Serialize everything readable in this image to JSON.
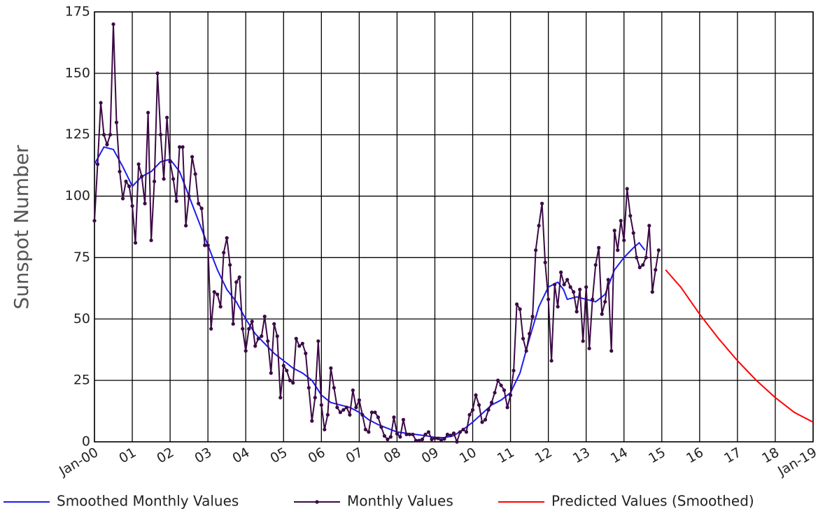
{
  "chart_data": {
    "type": "line",
    "y_label": "Sunspot Number",
    "xlim": [
      0,
      19
    ],
    "ylim": [
      0,
      175
    ],
    "xticks": [
      {
        "value": 0,
        "label": "Jan-00"
      },
      {
        "value": 1,
        "label": "01"
      },
      {
        "value": 2,
        "label": "02"
      },
      {
        "value": 3,
        "label": "03"
      },
      {
        "value": 4,
        "label": "04"
      },
      {
        "value": 5,
        "label": "05"
      },
      {
        "value": 6,
        "label": "06"
      },
      {
        "value": 7,
        "label": "07"
      },
      {
        "value": 8,
        "label": "08"
      },
      {
        "value": 9,
        "label": "09"
      },
      {
        "value": 10,
        "label": "10"
      },
      {
        "value": 11,
        "label": "11"
      },
      {
        "value": 12,
        "label": "12"
      },
      {
        "value": 13,
        "label": "13"
      },
      {
        "value": 14,
        "label": "14"
      },
      {
        "value": 15,
        "label": "15"
      },
      {
        "value": 16,
        "label": "16"
      },
      {
        "value": 17,
        "label": "17"
      },
      {
        "value": 18,
        "label": "18"
      },
      {
        "value": 19,
        "label": "Jan-19"
      }
    ],
    "yticks": [
      0,
      25,
      50,
      75,
      100,
      125,
      150,
      175
    ],
    "grid": true,
    "series": [
      {
        "name": "Smoothed Monthly Values",
        "color": "#1c1cf0",
        "x": [
          0,
          0.25,
          0.5,
          0.75,
          1,
          1.25,
          1.5,
          1.75,
          2,
          2.25,
          2.5,
          2.75,
          3,
          3.25,
          3.5,
          3.75,
          4,
          4.25,
          4.5,
          4.75,
          5,
          5.25,
          5.5,
          5.75,
          6,
          6.25,
          6.5,
          6.75,
          7,
          7.25,
          7.5,
          7.75,
          8,
          8.25,
          8.5,
          8.75,
          9,
          9.25,
          9.5,
          9.75,
          10,
          10.25,
          10.5,
          10.75,
          11,
          11.25,
          11.5,
          11.75,
          12,
          12.25,
          12.4,
          12.5,
          12.75,
          13,
          13.25,
          13.5,
          13.75,
          14,
          14.25,
          14.4,
          14.55
        ],
        "values": [
          113,
          120,
          119,
          112,
          104,
          108,
          110,
          114,
          115,
          110,
          100,
          90,
          80,
          70,
          62,
          57,
          50,
          44,
          40,
          36,
          33,
          30,
          28,
          25,
          19,
          16,
          15,
          14,
          12,
          9,
          7,
          5.5,
          4,
          3.5,
          3,
          2.5,
          1.8,
          1.7,
          2.5,
          5,
          8,
          11.5,
          15,
          17,
          20,
          28,
          42,
          55,
          63,
          65,
          62,
          58,
          59,
          58,
          57,
          60,
          70,
          75,
          79,
          81,
          78
        ]
      },
      {
        "name": "Monthly Values",
        "color": "#3b0a45",
        "marker": true,
        "x": [
          0,
          0.083,
          0.167,
          0.25,
          0.333,
          0.417,
          0.5,
          0.583,
          0.667,
          0.75,
          0.833,
          0.917,
          1,
          1.083,
          1.167,
          1.25,
          1.333,
          1.417,
          1.5,
          1.583,
          1.667,
          1.75,
          1.833,
          1.917,
          2,
          2.083,
          2.167,
          2.25,
          2.333,
          2.417,
          2.5,
          2.583,
          2.667,
          2.75,
          2.833,
          2.917,
          3,
          3.083,
          3.167,
          3.25,
          3.333,
          3.417,
          3.5,
          3.583,
          3.667,
          3.75,
          3.833,
          3.917,
          4,
          4.083,
          4.167,
          4.25,
          4.333,
          4.417,
          4.5,
          4.583,
          4.667,
          4.75,
          4.833,
          4.917,
          5,
          5.083,
          5.167,
          5.25,
          5.333,
          5.417,
          5.5,
          5.583,
          5.667,
          5.75,
          5.833,
          5.917,
          6,
          6.083,
          6.167,
          6.25,
          6.333,
          6.417,
          6.5,
          6.583,
          6.667,
          6.75,
          6.833,
          6.917,
          7,
          7.083,
          7.167,
          7.25,
          7.333,
          7.417,
          7.5,
          7.583,
          7.667,
          7.75,
          7.833,
          7.917,
          8,
          8.083,
          8.167,
          8.25,
          8.333,
          8.417,
          8.5,
          8.583,
          8.667,
          8.75,
          8.833,
          8.917,
          9,
          9.083,
          9.167,
          9.25,
          9.333,
          9.417,
          9.5,
          9.583,
          9.667,
          9.75,
          9.833,
          9.917,
          10,
          10.083,
          10.167,
          10.25,
          10.333,
          10.417,
          10.5,
          10.583,
          10.667,
          10.75,
          10.833,
          10.917,
          11,
          11.083,
          11.167,
          11.25,
          11.333,
          11.417,
          11.5,
          11.583,
          11.667,
          11.75,
          11.833,
          11.917,
          12,
          12.083,
          12.167,
          12.25,
          12.333,
          12.417,
          12.5,
          12.583,
          12.667,
          12.75,
          12.833,
          12.917,
          13,
          13.083,
          13.167,
          13.25,
          13.333,
          13.417,
          13.5,
          13.583,
          13.667,
          13.75,
          13.833,
          13.917,
          14,
          14.083,
          14.167,
          14.25,
          14.333,
          14.417,
          14.5,
          14.583,
          14.667,
          14.75,
          14.833,
          14.917
        ],
        "values": [
          90,
          113,
          138,
          125,
          121,
          125,
          170,
          130,
          110,
          99,
          106,
          104,
          96,
          81,
          113,
          108,
          97,
          134,
          82,
          106,
          150,
          125,
          107,
          132,
          114,
          107,
          98,
          120,
          120,
          88,
          100,
          116,
          109,
          97,
          95,
          80,
          80,
          46,
          61,
          60,
          55,
          77,
          83,
          72,
          48,
          65,
          67,
          46,
          37,
          46,
          49,
          39,
          42,
          43,
          51,
          41,
          28,
          48,
          43,
          18,
          31,
          29,
          25,
          24,
          42,
          39,
          40,
          36,
          22,
          8.5,
          18,
          41,
          15,
          5,
          11,
          30,
          22,
          14,
          12,
          13,
          14,
          11,
          21,
          14,
          17,
          11,
          5,
          4,
          12,
          12,
          10,
          6,
          2.4,
          1,
          2,
          10,
          3.3,
          2,
          9,
          3,
          3,
          3,
          0.5,
          0.5,
          1,
          3,
          4,
          1,
          1.5,
          1.4,
          0.7,
          1.2,
          3,
          2.6,
          3.5,
          0,
          4,
          5,
          4,
          11,
          13,
          19,
          15,
          8,
          9,
          13,
          16,
          20,
          25,
          23,
          21,
          14,
          19,
          29,
          56,
          54,
          42,
          37,
          44,
          51,
          78,
          88,
          97,
          73,
          58,
          33,
          64,
          55,
          69,
          64,
          66,
          63,
          61,
          53,
          62,
          41,
          63,
          38,
          58,
          72,
          79,
          52,
          57,
          66,
          37,
          86,
          78,
          90,
          82,
          103,
          92,
          85,
          75,
          71,
          72,
          75,
          88,
          61,
          70,
          78
        ]
      },
      {
        "name": "Predicted Values (Smoothed)",
        "color": "#ff0000",
        "x": [
          15.1,
          15.5,
          16,
          16.5,
          17,
          17.5,
          18,
          18.5,
          19
        ],
        "values": [
          70,
          63,
          52,
          42,
          33,
          25,
          18,
          12,
          8
        ]
      }
    ]
  }
}
